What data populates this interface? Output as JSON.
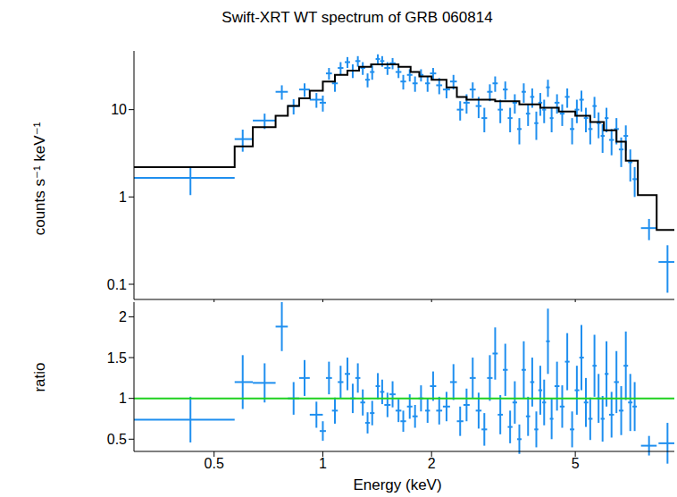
{
  "chart_data": [
    {
      "type": "scatter",
      "title": "Swift-XRT WT spectrum of GRB 060814",
      "y_label": "counts s⁻¹ keV⁻¹",
      "log": true,
      "xlim": [
        0.3,
        9.4
      ],
      "xticks": [
        0.5,
        1,
        2,
        5
      ],
      "ylim": [
        0.067,
        47
      ],
      "yticks": [
        0.1,
        1,
        10
      ],
      "tick_labels": "y",
      "series": [
        {
          "type": "scatter",
          "color": "#1f8fef",
          "marker": "none",
          "x": [
            0.43,
            0.6,
            0.69,
            0.77,
            0.83,
            0.89,
            0.96,
            1.0,
            1.04,
            1.08,
            1.12,
            1.17,
            1.21,
            1.25,
            1.29,
            1.33,
            1.37,
            1.42,
            1.46,
            1.51,
            1.56,
            1.62,
            1.67,
            1.74,
            1.8,
            1.87,
            1.95,
            2.02,
            2.1,
            2.2,
            2.3,
            2.4,
            2.5,
            2.6,
            2.7,
            2.8,
            2.9,
            3.0,
            3.1,
            3.2,
            3.3,
            3.4,
            3.5,
            3.6,
            3.7,
            3.8,
            3.9,
            4.0,
            4.1,
            4.2,
            4.3,
            4.45,
            4.6,
            4.75,
            4.9,
            5.05,
            5.2,
            5.35,
            5.5,
            5.65,
            5.8,
            5.95,
            6.1,
            6.3,
            6.5,
            6.7,
            6.9,
            7.1,
            7.3,
            8.0,
            9.0
          ],
          "x_err": [
            [
              0.13,
              0.14
            ],
            [
              0.03,
              0.04
            ],
            [
              0.05,
              0.05
            ],
            [
              0.03,
              0.03
            ],
            [
              0.03,
              0.03
            ],
            [
              0.03,
              0.03
            ],
            [
              0.04,
              0.04
            ],
            [
              0.02,
              0.02
            ],
            [
              0.02,
              0.02
            ],
            [
              0.02,
              0.02
            ],
            [
              0.02,
              0.02
            ],
            [
              0.02,
              0.02
            ],
            [
              0.02,
              0.02
            ],
            [
              0.02,
              0.02
            ],
            [
              0.02,
              0.02
            ],
            [
              0.02,
              0.02
            ],
            [
              0.02,
              0.02
            ],
            [
              0.02,
              0.02
            ],
            [
              0.02,
              0.02
            ],
            [
              0.03,
              0.03
            ],
            [
              0.03,
              0.03
            ],
            [
              0.03,
              0.03
            ],
            [
              0.03,
              0.03
            ],
            [
              0.03,
              0.03
            ],
            [
              0.03,
              0.03
            ],
            [
              0.03,
              0.03
            ],
            [
              0.03,
              0.03
            ],
            [
              0.04,
              0.04
            ],
            [
              0.04,
              0.04
            ],
            [
              0.05,
              0.05
            ],
            [
              0.05,
              0.05
            ],
            [
              0.05,
              0.05
            ],
            [
              0.05,
              0.05
            ],
            [
              0.05,
              0.05
            ],
            [
              0.05,
              0.05
            ],
            [
              0.05,
              0.05
            ],
            [
              0.05,
              0.05
            ],
            [
              0.05,
              0.05
            ],
            [
              0.05,
              0.05
            ],
            [
              0.05,
              0.05
            ],
            [
              0.05,
              0.05
            ],
            [
              0.05,
              0.05
            ],
            [
              0.05,
              0.05
            ],
            [
              0.05,
              0.05
            ],
            [
              0.05,
              0.05
            ],
            [
              0.05,
              0.05
            ],
            [
              0.05,
              0.05
            ],
            [
              0.05,
              0.05
            ],
            [
              0.05,
              0.05
            ],
            [
              0.05,
              0.05
            ],
            [
              0.05,
              0.05
            ],
            [
              0.07,
              0.07
            ],
            [
              0.07,
              0.07
            ],
            [
              0.07,
              0.07
            ],
            [
              0.07,
              0.07
            ],
            [
              0.07,
              0.08
            ],
            [
              0.07,
              0.08
            ],
            [
              0.07,
              0.08
            ],
            [
              0.07,
              0.08
            ],
            [
              0.07,
              0.08
            ],
            [
              0.07,
              0.08
            ],
            [
              0.07,
              0.08
            ],
            [
              0.07,
              0.08
            ],
            [
              0.1,
              0.1
            ],
            [
              0.1,
              0.1
            ],
            [
              0.1,
              0.1
            ],
            [
              0.1,
              0.1
            ],
            [
              0.1,
              0.1
            ],
            [
              0.1,
              0.1
            ],
            [
              0.4,
              0.4
            ],
            [
              0.5,
              0.4
            ]
          ],
          "values": [
            1.65,
            4.6,
            7.5,
            16,
            11,
            17,
            13,
            12,
            26,
            20,
            30,
            35,
            28,
            36,
            30,
            22,
            27,
            38,
            36,
            30,
            34,
            27,
            21,
            25,
            20,
            25,
            20,
            26,
            19,
            17,
            21,
            10,
            12,
            17,
            11,
            8,
            16,
            20,
            10,
            17,
            8,
            12,
            6,
            16,
            9,
            14,
            7,
            12,
            10,
            18,
            8,
            12,
            9,
            14,
            6,
            10,
            13,
            8,
            6,
            11,
            7,
            5,
            8,
            4.5,
            6,
            3.5,
            5,
            2.5,
            1.6,
            0.44,
            0.18
          ],
          "errors": [
            0.6,
            1.3,
            1.5,
            3,
            2.2,
            3,
            2.5,
            2.5,
            4,
            4,
            5,
            5,
            5,
            5,
            5,
            4,
            5,
            5,
            5,
            5,
            5,
            4,
            4,
            4,
            4,
            4,
            4,
            4,
            4,
            3.5,
            4,
            2.5,
            3,
            3.5,
            3,
            2.5,
            3.5,
            4,
            3,
            4,
            2.5,
            3,
            2,
            4,
            2.5,
            3.5,
            2.5,
            3.5,
            3,
            4,
            2.5,
            3,
            2.5,
            3.5,
            2,
            3,
            3.5,
            2.5,
            2,
            3,
            2.3,
            1.8,
            2.5,
            1.5,
            2,
            1.3,
            1.6,
            1,
            0.6,
            0.12,
            0.1
          ]
        },
        {
          "type": "step",
          "color": "#000000",
          "bins": [
            0.3,
            0.57,
            0.64,
            0.74,
            0.8,
            0.86,
            0.92,
            1.0,
            1.08,
            1.17,
            1.26,
            1.36,
            1.5,
            1.62,
            1.75,
            1.85,
            2.0,
            2.2,
            2.35,
            2.5,
            3.0,
            3.5,
            4.0,
            4.5,
            5.0,
            5.5,
            6.0,
            6.5,
            6.9,
            7.45,
            8.4,
            9.4
          ],
          "values": [
            2.2,
            3.8,
            6.3,
            8.5,
            11,
            13.5,
            16.5,
            21,
            25,
            28,
            31,
            33,
            33,
            31,
            27,
            24,
            22,
            18,
            14,
            13,
            12.5,
            11.5,
            10.5,
            9.5,
            8.5,
            7.2,
            5.8,
            4.3,
            2.6,
            1.05,
            0.42
          ]
        }
      ]
    },
    {
      "type": "scatter",
      "x_label": "Energy (keV)",
      "y_label": "ratio",
      "log": "x",
      "xlim": [
        0.3,
        9.4
      ],
      "xticks": [
        0.5,
        1,
        2,
        5
      ],
      "ylim": [
        0.35,
        2.18
      ],
      "yticks": [
        0.5,
        1,
        1.5,
        2
      ],
      "series": [
        {
          "type": "scatter",
          "color": "#1f8fef",
          "marker": "none",
          "x": [
            0.43,
            0.6,
            0.69,
            0.77,
            0.83,
            0.89,
            0.96,
            1.0,
            1.04,
            1.08,
            1.12,
            1.17,
            1.21,
            1.25,
            1.29,
            1.33,
            1.37,
            1.42,
            1.46,
            1.51,
            1.56,
            1.62,
            1.67,
            1.74,
            1.8,
            1.87,
            1.95,
            2.02,
            2.1,
            2.2,
            2.3,
            2.4,
            2.5,
            2.6,
            2.7,
            2.8,
            2.9,
            3.0,
            3.1,
            3.2,
            3.3,
            3.4,
            3.5,
            3.6,
            3.7,
            3.8,
            3.9,
            4.0,
            4.1,
            4.2,
            4.3,
            4.45,
            4.6,
            4.75,
            4.9,
            5.05,
            5.2,
            5.35,
            5.5,
            5.65,
            5.8,
            5.95,
            6.1,
            6.3,
            6.5,
            6.7,
            6.9,
            7.1,
            7.3,
            8.0,
            9.0
          ],
          "x_err": [
            [
              0.13,
              0.14
            ],
            [
              0.03,
              0.04
            ],
            [
              0.05,
              0.05
            ],
            [
              0.03,
              0.03
            ],
            [
              0.03,
              0.03
            ],
            [
              0.03,
              0.03
            ],
            [
              0.04,
              0.04
            ],
            [
              0.02,
              0.02
            ],
            [
              0.02,
              0.02
            ],
            [
              0.02,
              0.02
            ],
            [
              0.02,
              0.02
            ],
            [
              0.02,
              0.02
            ],
            [
              0.02,
              0.02
            ],
            [
              0.02,
              0.02
            ],
            [
              0.02,
              0.02
            ],
            [
              0.02,
              0.02
            ],
            [
              0.02,
              0.02
            ],
            [
              0.02,
              0.02
            ],
            [
              0.02,
              0.02
            ],
            [
              0.03,
              0.03
            ],
            [
              0.03,
              0.03
            ],
            [
              0.03,
              0.03
            ],
            [
              0.03,
              0.03
            ],
            [
              0.03,
              0.03
            ],
            [
              0.03,
              0.03
            ],
            [
              0.03,
              0.03
            ],
            [
              0.03,
              0.03
            ],
            [
              0.04,
              0.04
            ],
            [
              0.04,
              0.04
            ],
            [
              0.05,
              0.05
            ],
            [
              0.05,
              0.05
            ],
            [
              0.05,
              0.05
            ],
            [
              0.05,
              0.05
            ],
            [
              0.05,
              0.05
            ],
            [
              0.05,
              0.05
            ],
            [
              0.05,
              0.05
            ],
            [
              0.05,
              0.05
            ],
            [
              0.05,
              0.05
            ],
            [
              0.05,
              0.05
            ],
            [
              0.05,
              0.05
            ],
            [
              0.05,
              0.05
            ],
            [
              0.05,
              0.05
            ],
            [
              0.05,
              0.05
            ],
            [
              0.05,
              0.05
            ],
            [
              0.05,
              0.05
            ],
            [
              0.05,
              0.05
            ],
            [
              0.05,
              0.05
            ],
            [
              0.05,
              0.05
            ],
            [
              0.05,
              0.05
            ],
            [
              0.05,
              0.05
            ],
            [
              0.05,
              0.05
            ],
            [
              0.07,
              0.07
            ],
            [
              0.07,
              0.07
            ],
            [
              0.07,
              0.07
            ],
            [
              0.07,
              0.07
            ],
            [
              0.07,
              0.08
            ],
            [
              0.07,
              0.08
            ],
            [
              0.07,
              0.08
            ],
            [
              0.07,
              0.08
            ],
            [
              0.07,
              0.08
            ],
            [
              0.07,
              0.08
            ],
            [
              0.07,
              0.08
            ],
            [
              0.07,
              0.08
            ],
            [
              0.1,
              0.1
            ],
            [
              0.1,
              0.1
            ],
            [
              0.1,
              0.1
            ],
            [
              0.1,
              0.1
            ],
            [
              0.1,
              0.1
            ],
            [
              0.1,
              0.1
            ],
            [
              0.4,
              0.4
            ],
            [
              0.5,
              0.4
            ]
          ],
          "values": [
            0.74,
            1.2,
            1.19,
            1.88,
            1.0,
            1.25,
            0.8,
            0.6,
            1.25,
            0.85,
            1.2,
            1.3,
            1.0,
            1.25,
            0.95,
            0.7,
            0.82,
            1.15,
            1.08,
            0.92,
            1.05,
            0.85,
            0.72,
            0.9,
            0.78,
            1.0,
            0.85,
            1.15,
            0.85,
            0.9,
            1.2,
            0.72,
            0.92,
            1.25,
            0.85,
            0.62,
            1.25,
            1.55,
            0.8,
            1.35,
            0.65,
            0.95,
            0.5,
            1.35,
            0.78,
            1.2,
            0.62,
            1.1,
            0.95,
            1.7,
            0.75,
            1.15,
            0.9,
            1.45,
            0.62,
            1.1,
            1.5,
            0.95,
            0.75,
            1.4,
            1.0,
            0.75,
            1.3,
            0.8,
            1.2,
            0.85,
            1.4,
            0.95,
            0.9,
            0.42,
            0.45
          ],
          "errors": [
            0.28,
            0.33,
            0.24,
            0.3,
            0.2,
            0.22,
            0.16,
            0.12,
            0.2,
            0.16,
            0.2,
            0.2,
            0.18,
            0.18,
            0.16,
            0.13,
            0.15,
            0.16,
            0.15,
            0.15,
            0.16,
            0.14,
            0.13,
            0.15,
            0.14,
            0.16,
            0.15,
            0.18,
            0.17,
            0.18,
            0.22,
            0.18,
            0.2,
            0.25,
            0.22,
            0.2,
            0.28,
            0.32,
            0.24,
            0.32,
            0.2,
            0.26,
            0.18,
            0.35,
            0.24,
            0.3,
            0.22,
            0.3,
            0.28,
            0.4,
            0.25,
            0.3,
            0.26,
            0.35,
            0.22,
            0.3,
            0.4,
            0.3,
            0.26,
            0.38,
            0.3,
            0.28,
            0.4,
            0.28,
            0.38,
            0.3,
            0.42,
            0.35,
            0.3,
            0.12,
            0.25
          ]
        },
        {
          "type": "line",
          "color": "#1fd11f",
          "x": [
            0.3,
            9.4
          ],
          "values": [
            1,
            1
          ]
        }
      ]
    }
  ]
}
